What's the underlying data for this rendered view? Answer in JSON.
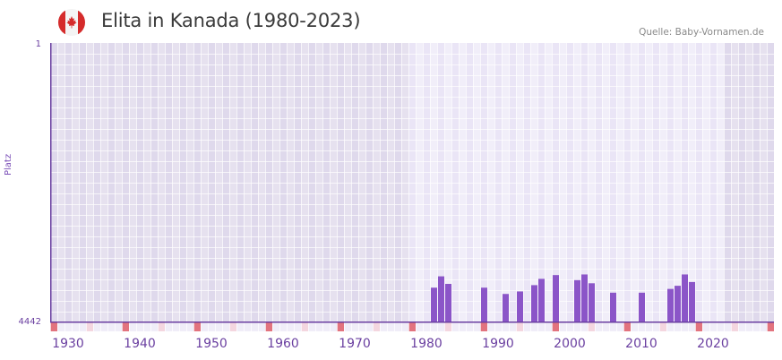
{
  "header": {
    "title": "Elita in Kanada (1980-2023)",
    "source": "Quelle: Baby-Vornamen.de",
    "flag_icon": "canada-flag-icon"
  },
  "colors": {
    "bar": "#8b55c8",
    "axis": "#6a3fa0",
    "bg_outside": "#e6e1ef",
    "bg_outside_alt": "#dfd9ec",
    "bg_inside": "#f1eef9",
    "bg_inside_alt": "#eae5f6",
    "marker_decade": "#e2737e",
    "marker_half": "#f4d6df",
    "marker_normal": "#f0edf8"
  },
  "chart_data": {
    "type": "bar",
    "title": "Elita in Kanada (1980-2023)",
    "xlabel": "",
    "ylabel": "Platz",
    "ylim": [
      4442,
      1
    ],
    "y_inverted": true,
    "x_range": [
      1928,
      2028
    ],
    "highlight_range": [
      1978,
      2021
    ],
    "yticks": [
      "1",
      "4442"
    ],
    "xticks": [
      1930,
      1940,
      1950,
      1960,
      1970,
      1980,
      1990,
      2000,
      2010,
      2020
    ],
    "grid": true,
    "legend": null,
    "categories": [
      1981,
      1982,
      1983,
      1988,
      1991,
      1993,
      1995,
      1996,
      1998,
      2001,
      2002,
      2003,
      2006,
      2010,
      2014,
      2015,
      2016,
      2017
    ],
    "values": [
      3890,
      3710,
      3830,
      3890,
      3990,
      3950,
      3850,
      3750,
      3690,
      3770,
      3680,
      3820,
      3970,
      3970,
      3910,
      3860,
      3680,
      3800
    ]
  }
}
